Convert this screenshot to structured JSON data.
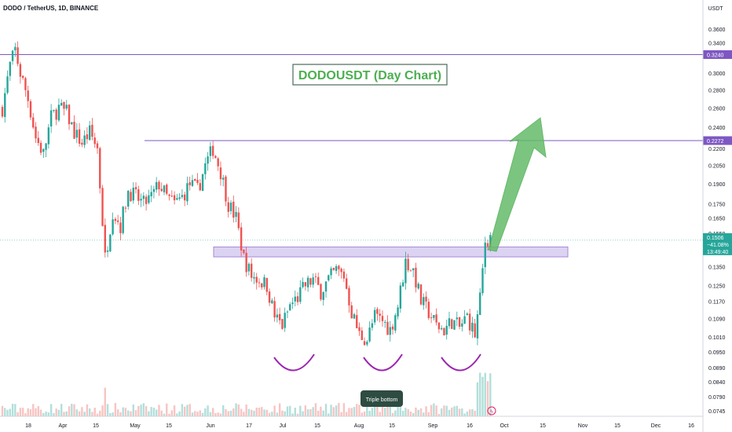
{
  "header": {
    "symbol_title": "DODO / TetherUS, 1D, BINANCE",
    "currency": "USDT"
  },
  "chart_data": {
    "type": "candlestick",
    "title": "DODOUSDT (Day Chart)",
    "y_scale": "log",
    "ylim": [
      0.0735,
      0.38
    ],
    "y_ticks": [
      {
        "label": "0.3600",
        "value": 0.36
      },
      {
        "label": "0.3400",
        "value": 0.34
      },
      {
        "label": "0.3000",
        "value": 0.3
      },
      {
        "label": "0.2800",
        "value": 0.28
      },
      {
        "label": "0.2600",
        "value": 0.26
      },
      {
        "label": "0.2400",
        "value": 0.24
      },
      {
        "label": "0.2200",
        "value": 0.22
      },
      {
        "label": "0.2050",
        "value": 0.205
      },
      {
        "label": "0.1900",
        "value": 0.19
      },
      {
        "label": "0.1750",
        "value": 0.175
      },
      {
        "label": "0.1650",
        "value": 0.165
      },
      {
        "label": "0.1550",
        "value": 0.155
      },
      {
        "label": "0.1350",
        "value": 0.135
      },
      {
        "label": "0.1250",
        "value": 0.125
      },
      {
        "label": "0.1170",
        "value": 0.117
      },
      {
        "label": "0.1090",
        "value": 0.109
      },
      {
        "label": "0.1010",
        "value": 0.101
      },
      {
        "label": "0.0950",
        "value": 0.095
      },
      {
        "label": "0.0890",
        "value": 0.089
      },
      {
        "label": "0.0840",
        "value": 0.084
      },
      {
        "label": "0.0790",
        "value": 0.079
      },
      {
        "label": "0.0745",
        "value": 0.0745
      }
    ],
    "x_ticks": [
      "18",
      "Apr",
      "15",
      "May",
      "15",
      "Jun",
      "17",
      "Jul",
      "15",
      "Aug",
      "15",
      "Sep",
      "16",
      "Oct",
      "15",
      "Nov",
      "15",
      "Dec",
      "16"
    ],
    "horizontal_lines": [
      {
        "price": 0.324,
        "label": "0.3240",
        "color": "#7e57c2"
      },
      {
        "price": 0.2272,
        "label": "0.2272",
        "color": "#7e57c2"
      }
    ],
    "resistance_zone": {
      "low": 0.1406,
      "high": 0.1465,
      "color": "#b39ddb"
    },
    "current": {
      "price": "0.1506",
      "change": "−41.08%",
      "countdown": "13:49:40",
      "value": 0.1506,
      "color": "#26a69a"
    },
    "colors": {
      "up": "#26a69a",
      "down": "#ef5350",
      "arrow": "#66bb6a",
      "title_text": "#4caf50",
      "pattern_curve": "#9c27b0"
    },
    "annotations": {
      "pattern_label": "Triple bottom"
    },
    "price_path": [
      [
        0,
        0.26
      ],
      [
        3,
        0.31
      ],
      [
        5,
        0.33
      ],
      [
        7,
        0.3
      ],
      [
        10,
        0.27
      ],
      [
        13,
        0.23
      ],
      [
        16,
        0.215
      ],
      [
        19,
        0.25
      ],
      [
        22,
        0.26
      ],
      [
        25,
        0.255
      ],
      [
        28,
        0.235
      ],
      [
        31,
        0.225
      ],
      [
        34,
        0.235
      ],
      [
        37,
        0.22
      ],
      [
        40,
        0.14
      ],
      [
        43,
        0.17
      ],
      [
        46,
        0.16
      ],
      [
        49,
        0.185
      ],
      [
        52,
        0.18
      ],
      [
        55,
        0.175
      ],
      [
        58,
        0.18
      ],
      [
        61,
        0.19
      ],
      [
        64,
        0.18
      ],
      [
        67,
        0.175
      ],
      [
        70,
        0.18
      ],
      [
        73,
        0.19
      ],
      [
        76,
        0.185
      ],
      [
        79,
        0.205
      ],
      [
        82,
        0.22
      ],
      [
        85,
        0.2
      ],
      [
        88,
        0.175
      ],
      [
        91,
        0.165
      ],
      [
        94,
        0.14
      ],
      [
        97,
        0.13
      ],
      [
        100,
        0.128
      ],
      [
        103,
        0.125
      ],
      [
        106,
        0.11
      ],
      [
        109,
        0.106
      ],
      [
        112,
        0.115
      ],
      [
        115,
        0.119
      ],
      [
        118,
        0.125
      ],
      [
        121,
        0.128
      ],
      [
        124,
        0.122
      ],
      [
        127,
        0.128
      ],
      [
        130,
        0.133
      ],
      [
        133,
        0.13
      ],
      [
        136,
        0.112
      ],
      [
        139,
        0.102
      ],
      [
        142,
        0.1
      ],
      [
        145,
        0.11
      ],
      [
        148,
        0.108
      ],
      [
        151,
        0.104
      ],
      [
        154,
        0.115
      ],
      [
        157,
        0.138
      ],
      [
        160,
        0.133
      ],
      [
        163,
        0.117
      ],
      [
        166,
        0.112
      ],
      [
        169,
        0.106
      ],
      [
        172,
        0.104
      ],
      [
        175,
        0.108
      ],
      [
        178,
        0.105
      ],
      [
        181,
        0.11
      ],
      [
        184,
        0.102
      ],
      [
        186,
        0.118
      ],
      [
        188,
        0.15
      ],
      [
        190,
        0.153
      ]
    ]
  }
}
